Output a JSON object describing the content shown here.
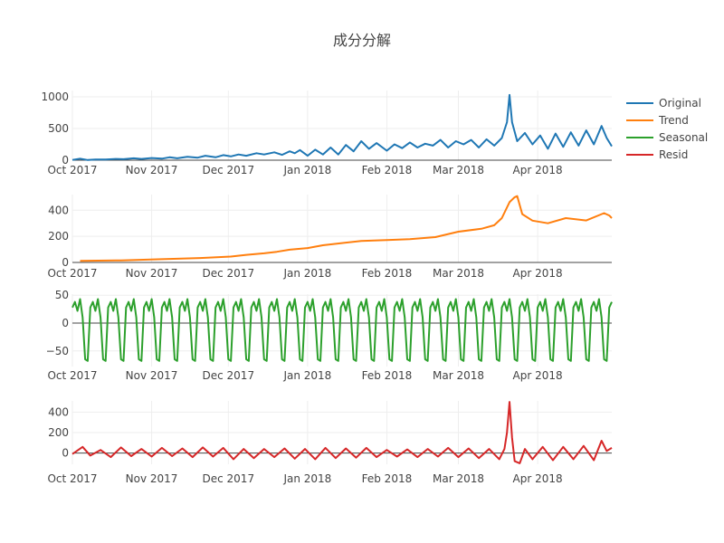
{
  "chart_data": {
    "type": "line",
    "title": "成分分解",
    "x_range": [
      "2017-10-01",
      "2018-04-30"
    ],
    "x_ticks": [
      {
        "label": "Oct 2017",
        "date": "2017-10-01"
      },
      {
        "label": "Nov 2017",
        "date": "2017-11-01"
      },
      {
        "label": "Dec 2017",
        "date": "2017-12-01"
      },
      {
        "label": "Jan 2018",
        "date": "2018-01-01"
      },
      {
        "label": "Feb 2018",
        "date": "2018-02-01"
      },
      {
        "label": "Mar 2018",
        "date": "2018-03-01"
      },
      {
        "label": "Apr 2018",
        "date": "2018-04-01"
      }
    ],
    "legend_position": "top-right",
    "grid": true,
    "subplots": [
      {
        "series_name": "Original",
        "color": "#1f77b4",
        "y_range": [
          0,
          1100
        ],
        "y_ticks": [
          {
            "label": "0",
            "value": 0
          },
          {
            "label": "500",
            "value": 500
          },
          {
            "label": "1000",
            "value": 1000
          }
        ],
        "points": [
          [
            "2017-10-01",
            5
          ],
          [
            "2017-10-04",
            25
          ],
          [
            "2017-10-07",
            3
          ],
          [
            "2017-10-10",
            12
          ],
          [
            "2017-10-14",
            10
          ],
          [
            "2017-10-18",
            20
          ],
          [
            "2017-10-21",
            15
          ],
          [
            "2017-10-25",
            30
          ],
          [
            "2017-10-28",
            20
          ],
          [
            "2017-11-01",
            35
          ],
          [
            "2017-11-05",
            25
          ],
          [
            "2017-11-08",
            45
          ],
          [
            "2017-11-11",
            30
          ],
          [
            "2017-11-15",
            55
          ],
          [
            "2017-11-19",
            40
          ],
          [
            "2017-11-22",
            70
          ],
          [
            "2017-11-26",
            45
          ],
          [
            "2017-11-29",
            80
          ],
          [
            "2017-12-02",
            60
          ],
          [
            "2017-12-05",
            90
          ],
          [
            "2017-12-08",
            70
          ],
          [
            "2017-12-12",
            110
          ],
          [
            "2017-12-15",
            90
          ],
          [
            "2017-12-19",
            125
          ],
          [
            "2017-12-22",
            85
          ],
          [
            "2017-12-25",
            140
          ],
          [
            "2017-12-27",
            110
          ],
          [
            "2017-12-29",
            160
          ],
          [
            "2018-01-01",
            70
          ],
          [
            "2018-01-04",
            165
          ],
          [
            "2018-01-07",
            90
          ],
          [
            "2018-01-10",
            200
          ],
          [
            "2018-01-13",
            90
          ],
          [
            "2018-01-16",
            240
          ],
          [
            "2018-01-19",
            140
          ],
          [
            "2018-01-22",
            300
          ],
          [
            "2018-01-25",
            180
          ],
          [
            "2018-01-28",
            270
          ],
          [
            "2018-02-01",
            150
          ],
          [
            "2018-02-04",
            250
          ],
          [
            "2018-02-07",
            190
          ],
          [
            "2018-02-10",
            280
          ],
          [
            "2018-02-13",
            200
          ],
          [
            "2018-02-16",
            260
          ],
          [
            "2018-02-19",
            230
          ],
          [
            "2018-02-22",
            320
          ],
          [
            "2018-02-25",
            200
          ],
          [
            "2018-02-28",
            300
          ],
          [
            "2018-03-03",
            250
          ],
          [
            "2018-03-06",
            320
          ],
          [
            "2018-03-09",
            200
          ],
          [
            "2018-03-12",
            330
          ],
          [
            "2018-03-15",
            230
          ],
          [
            "2018-03-18",
            350
          ],
          [
            "2018-03-20",
            600
          ],
          [
            "2018-03-21",
            1030
          ],
          [
            "2018-03-22",
            600
          ],
          [
            "2018-03-24",
            300
          ],
          [
            "2018-03-27",
            430
          ],
          [
            "2018-03-30",
            250
          ],
          [
            "2018-04-02",
            390
          ],
          [
            "2018-04-05",
            180
          ],
          [
            "2018-04-08",
            420
          ],
          [
            "2018-04-11",
            210
          ],
          [
            "2018-04-14",
            440
          ],
          [
            "2018-04-17",
            230
          ],
          [
            "2018-04-20",
            470
          ],
          [
            "2018-04-23",
            250
          ],
          [
            "2018-04-26",
            540
          ],
          [
            "2018-04-28",
            350
          ],
          [
            "2018-04-30",
            220
          ]
        ]
      },
      {
        "series_name": "Trend",
        "color": "#ff7f0e",
        "y_range": [
          0,
          520
        ],
        "y_ticks": [
          {
            "label": "0",
            "value": 0
          },
          {
            "label": "200",
            "value": 200
          },
          {
            "label": "400",
            "value": 400
          }
        ],
        "points": [
          [
            "2017-10-04",
            12
          ],
          [
            "2017-10-20",
            16
          ],
          [
            "2017-11-05",
            25
          ],
          [
            "2017-11-20",
            34
          ],
          [
            "2017-12-02",
            45
          ],
          [
            "2017-12-08",
            58
          ],
          [
            "2017-12-15",
            70
          ],
          [
            "2017-12-20",
            82
          ],
          [
            "2017-12-25",
            98
          ],
          [
            "2018-01-01",
            110
          ],
          [
            "2018-01-07",
            132
          ],
          [
            "2018-01-14",
            148
          ],
          [
            "2018-01-22",
            165
          ],
          [
            "2018-02-01",
            172
          ],
          [
            "2018-02-10",
            178
          ],
          [
            "2018-02-20",
            194
          ],
          [
            "2018-03-01",
            236
          ],
          [
            "2018-03-10",
            258
          ],
          [
            "2018-03-15",
            285
          ],
          [
            "2018-03-18",
            340
          ],
          [
            "2018-03-21",
            462
          ],
          [
            "2018-03-23",
            500
          ],
          [
            "2018-03-24",
            508
          ],
          [
            "2018-03-26",
            370
          ],
          [
            "2018-03-30",
            320
          ],
          [
            "2018-04-05",
            300
          ],
          [
            "2018-04-12",
            340
          ],
          [
            "2018-04-20",
            322
          ],
          [
            "2018-04-27",
            378
          ],
          [
            "2018-04-29",
            360
          ],
          [
            "2018-04-30",
            340
          ]
        ]
      },
      {
        "series_name": "Seasonal",
        "color": "#2ca02c",
        "y_range": [
          -78,
          52
        ],
        "y_ticks": [
          {
            "label": "−50",
            "value": -50
          },
          {
            "label": "0",
            "value": 0
          },
          {
            "label": "50",
            "value": 50
          }
        ],
        "period_days": 7,
        "weekly_pattern": [
          28,
          38,
          22,
          43,
          10,
          -65,
          -68
        ],
        "start_date": "2017-10-01",
        "end_date": "2018-04-30"
      },
      {
        "series_name": "Resid",
        "color": "#d62728",
        "y_range": [
          -110,
          510
        ],
        "y_ticks": [
          {
            "label": "0",
            "value": 0
          },
          {
            "label": "200",
            "value": 200
          },
          {
            "label": "400",
            "value": 400
          }
        ],
        "points": [
          [
            "2017-10-01",
            -10
          ],
          [
            "2017-10-05",
            60
          ],
          [
            "2017-10-08",
            -25
          ],
          [
            "2017-10-12",
            30
          ],
          [
            "2017-10-16",
            -40
          ],
          [
            "2017-10-20",
            55
          ],
          [
            "2017-10-24",
            -30
          ],
          [
            "2017-10-28",
            40
          ],
          [
            "2017-11-01",
            -35
          ],
          [
            "2017-11-05",
            50
          ],
          [
            "2017-11-09",
            -30
          ],
          [
            "2017-11-13",
            45
          ],
          [
            "2017-11-17",
            -40
          ],
          [
            "2017-11-21",
            55
          ],
          [
            "2017-11-25",
            -35
          ],
          [
            "2017-11-29",
            50
          ],
          [
            "2017-12-03",
            -60
          ],
          [
            "2017-12-07",
            40
          ],
          [
            "2017-12-11",
            -50
          ],
          [
            "2017-12-15",
            40
          ],
          [
            "2017-12-19",
            -40
          ],
          [
            "2017-12-23",
            45
          ],
          [
            "2017-12-27",
            -55
          ],
          [
            "2017-12-31",
            40
          ],
          [
            "2018-01-04",
            -60
          ],
          [
            "2018-01-08",
            50
          ],
          [
            "2018-01-12",
            -50
          ],
          [
            "2018-01-16",
            45
          ],
          [
            "2018-01-20",
            -45
          ],
          [
            "2018-01-24",
            50
          ],
          [
            "2018-01-28",
            -40
          ],
          [
            "2018-02-01",
            30
          ],
          [
            "2018-02-05",
            -35
          ],
          [
            "2018-02-09",
            35
          ],
          [
            "2018-02-13",
            -40
          ],
          [
            "2018-02-17",
            40
          ],
          [
            "2018-02-21",
            -35
          ],
          [
            "2018-02-25",
            50
          ],
          [
            "2018-03-01",
            -40
          ],
          [
            "2018-03-05",
            45
          ],
          [
            "2018-03-09",
            -50
          ],
          [
            "2018-03-13",
            40
          ],
          [
            "2018-03-17",
            -60
          ],
          [
            "2018-03-19",
            40
          ],
          [
            "2018-03-20",
            200
          ],
          [
            "2018-03-21",
            500
          ],
          [
            "2018-03-22",
            150
          ],
          [
            "2018-03-23",
            -80
          ],
          [
            "2018-03-25",
            -100
          ],
          [
            "2018-03-27",
            40
          ],
          [
            "2018-03-30",
            -60
          ],
          [
            "2018-04-03",
            60
          ],
          [
            "2018-04-07",
            -70
          ],
          [
            "2018-04-11",
            60
          ],
          [
            "2018-04-15",
            -60
          ],
          [
            "2018-04-19",
            70
          ],
          [
            "2018-04-23",
            -70
          ],
          [
            "2018-04-26",
            120
          ],
          [
            "2018-04-28",
            20
          ],
          [
            "2018-04-30",
            50
          ]
        ]
      }
    ]
  }
}
